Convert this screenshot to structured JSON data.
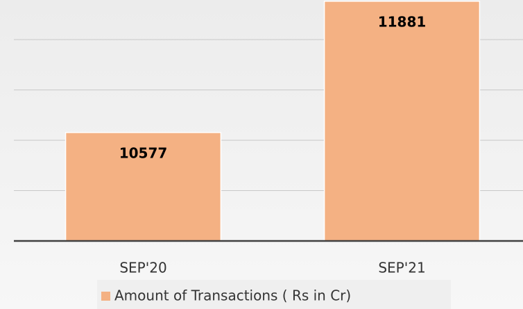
{
  "chart_data": {
    "type": "bar",
    "categories": [
      "SEP'20",
      "SEP'21"
    ],
    "series": [
      {
        "name": "Amount of Transactions ( Rs in Cr)",
        "color": "#f4b183",
        "values": [
          10577,
          11881
        ]
      }
    ],
    "ylim": [
      9500,
      12000
    ],
    "yticks": [
      10000,
      10500,
      11000,
      11500
    ],
    "grid": true,
    "legend": "bottom"
  }
}
